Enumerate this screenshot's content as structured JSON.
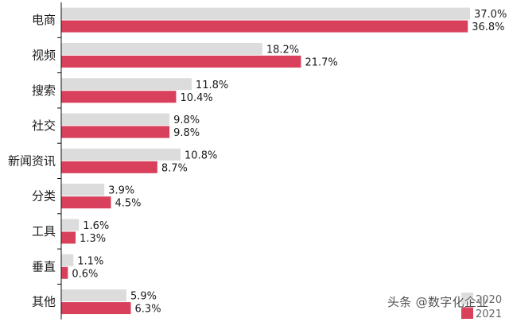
{
  "chart_data": {
    "type": "bar",
    "orientation": "horizontal",
    "categories": [
      "电商",
      "视频",
      "搜索",
      "社交",
      "新闻资讯",
      "分类",
      "工具",
      "垂直",
      "其他"
    ],
    "series": [
      {
        "name": "2020",
        "color": "#dcdcdc",
        "values": [
          37.0,
          18.2,
          11.8,
          9.8,
          10.8,
          3.9,
          1.6,
          1.1,
          5.9
        ],
        "labels": [
          "37.0%",
          "18.2%",
          "11.8%",
          "9.8%",
          "10.8%",
          "3.9%",
          "1.6%",
          "1.1%",
          "5.9%"
        ]
      },
      {
        "name": "2021",
        "color": "#d9405c",
        "values": [
          36.8,
          21.7,
          10.4,
          9.8,
          8.7,
          4.5,
          1.3,
          0.6,
          6.3
        ],
        "labels": [
          "36.8%",
          "21.7%",
          "10.4%",
          "9.8%",
          "8.7%",
          "4.5%",
          "1.3%",
          "0.6%",
          "6.3%"
        ]
      }
    ],
    "title": "",
    "xlabel": "",
    "ylabel": "",
    "xlim": [
      0,
      37.0
    ],
    "grid": false,
    "legend_position": "bottom-right"
  },
  "watermark": "头条 @数字化企业"
}
